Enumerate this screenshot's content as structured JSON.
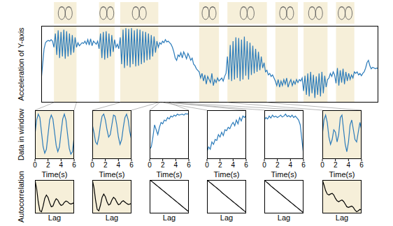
{
  "chart_data": [
    {
      "type": "line",
      "y_label": "Acceleration of Y-axis",
      "color": "#2b7bba",
      "tick_labels": false,
      "xlim": [
        0,
        239
      ],
      "ylim": [
        0,
        100
      ],
      "highlights": [
        [
          9,
          25
        ],
        [
          41,
          52
        ],
        [
          56,
          83
        ],
        [
          112,
          126
        ],
        [
          132,
          160
        ],
        [
          166,
          182
        ],
        [
          186,
          203
        ],
        [
          209,
          222
        ]
      ],
      "x": [
        0,
        1,
        2,
        3,
        4,
        5,
        6,
        7,
        8,
        9,
        10,
        11,
        12,
        13,
        14,
        15,
        16,
        17,
        18,
        19,
        20,
        21,
        22,
        23,
        24,
        25,
        26,
        27,
        28,
        29,
        30,
        31,
        32,
        33,
        34,
        35,
        36,
        37,
        38,
        39,
        40,
        41,
        42,
        43,
        44,
        45,
        46,
        47,
        48,
        49,
        50,
        51,
        52,
        53,
        54,
        55,
        56,
        57,
        58,
        59,
        60,
        61,
        62,
        63,
        64,
        65,
        66,
        67,
        68,
        69,
        70,
        71,
        72,
        73,
        74,
        75,
        76,
        77,
        78,
        79,
        80,
        81,
        82,
        83,
        84,
        85,
        86,
        87,
        88,
        89,
        90,
        91,
        92,
        93,
        94,
        95,
        96,
        97,
        98,
        99,
        100,
        101,
        102,
        103,
        104,
        105,
        106,
        107,
        108,
        109,
        110,
        111,
        112,
        113,
        114,
        115,
        116,
        117,
        118,
        119,
        120,
        121,
        122,
        123,
        124,
        125,
        126,
        127,
        128,
        129,
        130,
        131,
        132,
        133,
        134,
        135,
        136,
        137,
        138,
        139,
        140,
        141,
        142,
        143,
        144,
        145,
        146,
        147,
        148,
        149,
        150,
        151,
        152,
        153,
        154,
        155,
        156,
        157,
        158,
        159,
        160,
        161,
        162,
        163,
        164,
        165,
        166,
        167,
        168,
        169,
        170,
        171,
        172,
        173,
        174,
        175,
        176,
        177,
        178,
        179,
        180,
        181,
        182,
        183,
        184,
        185,
        186,
        187,
        188,
        189,
        190,
        191,
        192,
        193,
        194,
        195,
        196,
        197,
        198,
        199,
        200,
        201,
        202,
        203,
        204,
        205,
        206,
        207,
        208,
        209,
        210,
        211,
        212,
        213,
        214,
        215,
        216,
        217,
        218,
        219,
        220,
        221,
        222,
        223,
        224,
        225,
        226,
        227,
        228,
        229,
        230,
        231,
        232,
        233,
        234,
        235,
        236,
        237,
        238,
        239
      ],
      "values": [
        30,
        50,
        70,
        78,
        80,
        81,
        80,
        82,
        80,
        72,
        90,
        62,
        94,
        58,
        92,
        60,
        95,
        57,
        93,
        60,
        90,
        62,
        88,
        65,
        85,
        72,
        78,
        74,
        76,
        78,
        77,
        80,
        76,
        82,
        75,
        83,
        74,
        80,
        78,
        76,
        80,
        70,
        90,
        58,
        92,
        56,
        93,
        58,
        90,
        60,
        88,
        66,
        82,
        72,
        76,
        70,
        85,
        50,
        95,
        45,
        97,
        48,
        96,
        46,
        97,
        50,
        94,
        47,
        96,
        48,
        95,
        50,
        93,
        52,
        92,
        55,
        90,
        56,
        88,
        60,
        86,
        65,
        80,
        72,
        78,
        76,
        80,
        78,
        82,
        79,
        80,
        78,
        76,
        72,
        66,
        58,
        55,
        62,
        60,
        65,
        58,
        66,
        62,
        57,
        64,
        60,
        55,
        58,
        50,
        48,
        44,
        42,
        40,
        32,
        38,
        28,
        36,
        24,
        34,
        30,
        26,
        38,
        22,
        30,
        26,
        32,
        28,
        30,
        32,
        28,
        34,
        38,
        60,
        30,
        75,
        28,
        80,
        30,
        85,
        32,
        84,
        28,
        82,
        30,
        86,
        35,
        80,
        30,
        78,
        36,
        74,
        38,
        70,
        40,
        66,
        42,
        60,
        45,
        52,
        40,
        42,
        36,
        38,
        34,
        36,
        32,
        28,
        22,
        30,
        20,
        28,
        22,
        30,
        24,
        32,
        20,
        26,
        30,
        22,
        28,
        24,
        30,
        26,
        30,
        28,
        32,
        15,
        35,
        10,
        38,
        8,
        40,
        12,
        36,
        6,
        34,
        10,
        38,
        8,
        40,
        12,
        35,
        20,
        30,
        32,
        38,
        34,
        40,
        36,
        25,
        45,
        22,
        42,
        26,
        44,
        24,
        40,
        28,
        38,
        30,
        36,
        32,
        40,
        38,
        40,
        36,
        38,
        35,
        38,
        40,
        45,
        52,
        55,
        48,
        44,
        46,
        45,
        44,
        45,
        44
      ]
    },
    {
      "type": "line",
      "y_label": "Data in window",
      "x_label": "Time(s)",
      "color": "#2b7bba",
      "tick_labels": "x",
      "window": [
        9,
        25
      ],
      "xlim": [
        0,
        6
      ],
      "ylim": [
        0,
        100
      ],
      "xticks": [
        0,
        2,
        4,
        6
      ],
      "x": [
        0,
        0.25,
        0.5,
        0.75,
        1,
        1.25,
        1.5,
        1.75,
        2,
        2.25,
        2.5,
        2.75,
        3,
        3.25,
        3.5,
        3.75,
        4,
        4.25,
        4.5,
        4.75,
        5,
        5.25,
        5.5,
        5.75,
        6
      ],
      "values": [
        50,
        80,
        92,
        85,
        55,
        25,
        12,
        20,
        50,
        80,
        90,
        82,
        55,
        28,
        15,
        25,
        55,
        82,
        92,
        80,
        50,
        22,
        10,
        15,
        45
      ]
    },
    {
      "type": "line",
      "x_label": "Time(s)",
      "color": "#2b7bba",
      "tick_labels": "x",
      "window": [
        56,
        83
      ],
      "xlim": [
        0,
        6
      ],
      "ylim": [
        0,
        100
      ],
      "xticks": [
        0,
        2,
        4,
        6
      ],
      "x": [
        0,
        0.25,
        0.5,
        0.75,
        1,
        1.25,
        1.5,
        1.75,
        2,
        2.25,
        2.5,
        2.75,
        3,
        3.25,
        3.5,
        3.75,
        4,
        4.25,
        4.5,
        4.75,
        5,
        5.25,
        5.5,
        5.75,
        6
      ],
      "values": [
        70,
        55,
        35,
        30,
        45,
        70,
        88,
        92,
        80,
        60,
        45,
        50,
        70,
        90,
        88,
        70,
        45,
        30,
        40,
        65,
        85,
        92,
        80,
        55,
        40
      ]
    },
    {
      "type": "line",
      "x_label": "Time(s)",
      "color": "#2b7bba",
      "tick_labels": "x",
      "window": [
        84,
        90
      ],
      "xlim": [
        0,
        6
      ],
      "ylim": [
        0,
        100
      ],
      "xticks": [
        0,
        2,
        4,
        6
      ],
      "x": [
        0,
        0.25,
        0.5,
        0.75,
        1,
        1.25,
        1.5,
        1.75,
        2,
        2.25,
        2.5,
        2.75,
        3,
        3.25,
        3.5,
        3.75,
        4,
        4.25,
        4.5,
        4.75,
        5,
        5.25,
        5.5,
        5.75,
        6
      ],
      "values": [
        20,
        25,
        45,
        70,
        60,
        50,
        65,
        75,
        72,
        80,
        78,
        85,
        82,
        88,
        86,
        90,
        88,
        92,
        90,
        91,
        92,
        90,
        93,
        92,
        93
      ]
    },
    {
      "type": "line",
      "x_label": "Time(s)",
      "color": "#2b7bba",
      "tick_labels": "x",
      "window": [
        86,
        92
      ],
      "xlim": [
        0,
        6
      ],
      "ylim": [
        0,
        100
      ],
      "xticks": [
        0,
        2,
        4,
        6
      ],
      "x": [
        0,
        0.25,
        0.5,
        0.75,
        1,
        1.25,
        1.5,
        1.75,
        2,
        2.25,
        2.5,
        2.75,
        3,
        3.25,
        3.5,
        3.75,
        4,
        4.25,
        4.5,
        4.75,
        5,
        5.25,
        5.5,
        5.75,
        6
      ],
      "values": [
        15,
        25,
        20,
        35,
        30,
        40,
        38,
        50,
        45,
        55,
        48,
        60,
        58,
        65,
        62,
        70,
        75,
        68,
        80,
        72,
        85,
        78,
        88,
        85,
        90
      ]
    },
    {
      "type": "line",
      "x_label": "Time(s)",
      "color": "#2b7bba",
      "tick_labels": "x",
      "window": [
        88,
        94
      ],
      "xlim": [
        0,
        6
      ],
      "ylim": [
        0,
        100
      ],
      "xticks": [
        0,
        2,
        4,
        6
      ],
      "x": [
        0,
        0.25,
        0.5,
        0.75,
        1,
        1.25,
        1.5,
        1.75,
        2,
        2.25,
        2.5,
        2.75,
        3,
        3.25,
        3.5,
        3.75,
        4,
        4.25,
        4.5,
        4.75,
        5,
        5.25,
        5.5,
        5.75,
        6
      ],
      "values": [
        80,
        85,
        82,
        88,
        84,
        90,
        86,
        88,
        85,
        87,
        90,
        86,
        88,
        92,
        87,
        89,
        86,
        90,
        85,
        88,
        84,
        80,
        70,
        40,
        10
      ]
    },
    {
      "type": "line",
      "x_label": "Time(s)",
      "color": "#2b7bba",
      "tick_labels": "x",
      "window": [
        132,
        160
      ],
      "xlim": [
        0,
        6
      ],
      "ylim": [
        0,
        100
      ],
      "xticks": [
        0,
        2,
        4,
        6
      ],
      "x": [
        0,
        0.25,
        0.5,
        0.75,
        1,
        1.25,
        1.5,
        1.75,
        2,
        2.25,
        2.5,
        2.75,
        3,
        3.25,
        3.5,
        3.75,
        4,
        4.25,
        4.5,
        4.75,
        5,
        5.25,
        5.5,
        5.75,
        6
      ],
      "values": [
        50,
        80,
        90,
        75,
        45,
        30,
        40,
        60,
        55,
        35,
        50,
        85,
        90,
        60,
        30,
        15,
        35,
        70,
        80,
        60,
        40,
        35,
        55,
        75,
        60
      ]
    },
    {
      "type": "line",
      "y_label": "Autocorrelation",
      "x_label": "Lag",
      "color": "#000000",
      "tick_labels": false,
      "xlim": [
        0,
        24
      ],
      "ylim": [
        0,
        100
      ],
      "x": [
        0,
        1,
        2,
        3,
        4,
        5,
        6,
        7,
        8,
        9,
        10,
        11,
        12,
        13,
        14,
        15,
        16,
        17,
        18,
        19,
        20,
        21,
        22,
        23,
        24
      ],
      "values": [
        100,
        75,
        35,
        8,
        5,
        22,
        45,
        55,
        48,
        32,
        20,
        22,
        35,
        44,
        40,
        30,
        24,
        26,
        33,
        37,
        35,
        30,
        28,
        30,
        32
      ]
    },
    {
      "type": "line",
      "x_label": "Lag",
      "color": "#000000",
      "tick_labels": false,
      "xlim": [
        0,
        24
      ],
      "ylim": [
        0,
        100
      ],
      "x": [
        0,
        1,
        2,
        3,
        4,
        5,
        6,
        7,
        8,
        9,
        10,
        11,
        12,
        13,
        14,
        15,
        16,
        17,
        18,
        19,
        20,
        21,
        22,
        23,
        24
      ],
      "values": [
        100,
        78,
        40,
        12,
        8,
        25,
        48,
        58,
        50,
        35,
        25,
        28,
        40,
        48,
        44,
        34,
        26,
        28,
        35,
        38,
        34,
        30,
        27,
        28,
        30
      ]
    },
    {
      "type": "line",
      "x_label": "Lag",
      "color": "#000000",
      "tick_labels": false,
      "xlim": [
        0,
        24
      ],
      "ylim": [
        0,
        100
      ],
      "x": [
        0,
        1,
        2,
        3,
        4,
        5,
        6,
        7,
        8,
        9,
        10,
        11,
        12,
        13,
        14,
        15,
        16,
        17,
        18,
        19,
        20,
        21,
        22,
        23,
        24
      ],
      "values": [
        100,
        97,
        93,
        89,
        85,
        81,
        77,
        73,
        69,
        65,
        61,
        57,
        53,
        49,
        45,
        41,
        37,
        33,
        29,
        25,
        21,
        17,
        13,
        9,
        5
      ]
    },
    {
      "type": "line",
      "x_label": "Lag",
      "color": "#000000",
      "tick_labels": false,
      "xlim": [
        0,
        24
      ],
      "ylim": [
        0,
        100
      ],
      "x": [
        0,
        1,
        2,
        3,
        4,
        5,
        6,
        7,
        8,
        9,
        10,
        11,
        12,
        13,
        14,
        15,
        16,
        17,
        18,
        19,
        20,
        21,
        22,
        23,
        24
      ],
      "values": [
        100,
        96,
        92,
        88,
        84,
        80,
        76,
        72,
        68,
        63,
        59,
        55,
        51,
        47,
        43,
        39,
        35,
        31,
        27,
        23,
        19,
        15,
        11,
        7,
        3
      ]
    },
    {
      "type": "line",
      "x_label": "Lag",
      "color": "#000000",
      "tick_labels": false,
      "xlim": [
        0,
        24
      ],
      "ylim": [
        0,
        100
      ],
      "x": [
        0,
        1,
        2,
        3,
        4,
        5,
        6,
        7,
        8,
        9,
        10,
        11,
        12,
        13,
        14,
        15,
        16,
        17,
        18,
        19,
        20,
        21,
        22,
        23,
        24
      ],
      "values": [
        100,
        95,
        91,
        87,
        82,
        78,
        74,
        70,
        66,
        62,
        58,
        54,
        50,
        46,
        42,
        38,
        34,
        30,
        26,
        22,
        18,
        14,
        10,
        6,
        2
      ]
    },
    {
      "type": "line",
      "x_label": "Lag",
      "color": "#000000",
      "tick_labels": false,
      "xlim": [
        0,
        24
      ],
      "ylim": [
        0,
        100
      ],
      "x": [
        0,
        1,
        2,
        3,
        4,
        5,
        6,
        7,
        8,
        9,
        10,
        11,
        12,
        13,
        14,
        15,
        16,
        17,
        18,
        19,
        20,
        21,
        22,
        23,
        24
      ],
      "values": [
        100,
        85,
        68,
        58,
        55,
        58,
        60,
        55,
        45,
        38,
        35,
        38,
        40,
        36,
        28,
        20,
        18,
        20,
        22,
        18,
        10,
        5,
        8,
        12,
        10
      ]
    }
  ]
}
